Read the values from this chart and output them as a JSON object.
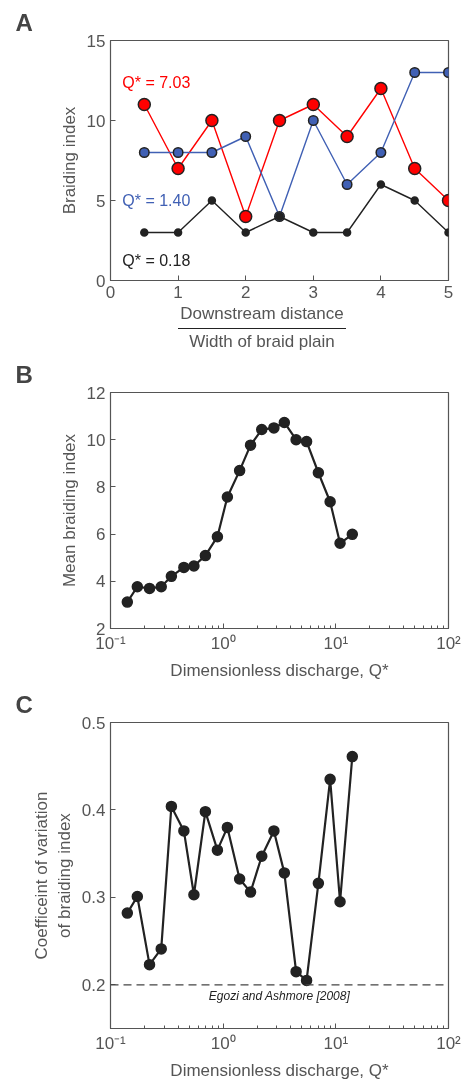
{
  "chart_data": [
    {
      "type": "line",
      "title": "A",
      "ylabel": "Braiding index",
      "xlabel": "Downstream distance\nWidth of braid plain",
      "x": [
        0.5,
        1,
        1.5,
        2,
        2.5,
        3,
        3.5,
        4,
        4.5,
        5
      ],
      "series": [
        {
          "name": "Q* = 7.03",
          "color": "#ff0000",
          "values": [
            11,
            7,
            10,
            4,
            10,
            11,
            9,
            12,
            7,
            5
          ]
        },
        {
          "name": "Q* = 1.40",
          "color": "#4060b4",
          "values": [
            8,
            8,
            8,
            9,
            4,
            10,
            6,
            8,
            13,
            13
          ]
        },
        {
          "name": "Q* = 0.18",
          "color": "#222222",
          "values": [
            3,
            3,
            5,
            3,
            4,
            3,
            3,
            6,
            5,
            3
          ]
        }
      ],
      "xlim": [
        0,
        5
      ],
      "xticks": [
        0,
        1,
        2,
        3,
        4,
        5
      ],
      "ylim": [
        0,
        15
      ],
      "yticks": [
        0,
        5,
        10,
        15
      ],
      "grid": false,
      "legend": false,
      "marker": "circle",
      "line_style": "solid"
    },
    {
      "type": "line",
      "title": "B",
      "ylabel": "Mean braiding index",
      "xlabel": "Dimensionless discharge, Q*",
      "x": [
        0.141,
        0.173,
        0.222,
        0.282,
        0.347,
        0.448,
        0.55,
        0.695,
        0.889,
        1.09,
        1.4,
        1.75,
        2.2,
        2.82,
        3.49,
        4.44,
        5.5,
        7.0,
        8.9,
        10.9,
        14.0
      ],
      "series": [
        {
          "color": "#222222",
          "values": [
            3.12,
            3.77,
            3.7,
            3.77,
            4.21,
            4.59,
            4.65,
            5.09,
            5.89,
            7.57,
            8.69,
            9.77,
            10.43,
            10.5,
            10.73,
            10.0,
            9.92,
            8.6,
            7.37,
            5.61,
            5.99
          ]
        }
      ],
      "xlim": [
        0.1,
        100
      ],
      "xticks": [
        {
          "value": 0.1,
          "label": "10⁻¹"
        },
        {
          "value": 1,
          "label": "10⁰"
        },
        {
          "value": 10,
          "label": "10¹"
        },
        {
          "value": 100,
          "label": "10²"
        }
      ],
      "ylim": [
        2,
        12
      ],
      "yticks": [
        2,
        4,
        6,
        8,
        10,
        12
      ],
      "log": "x",
      "grid": false,
      "legend": false,
      "marker": "circle",
      "line_style": "solid"
    },
    {
      "type": "line",
      "title": "C",
      "ylabel": "Coefficeint of variation\nof braiding index",
      "xlabel": "Dimensionless discharge, Q*",
      "x": [
        0.141,
        0.173,
        0.222,
        0.282,
        0.347,
        0.448,
        0.55,
        0.695,
        0.889,
        1.09,
        1.4,
        1.75,
        2.2,
        2.82,
        3.49,
        4.44,
        5.5,
        7.0,
        8.9,
        10.9,
        14.0
      ],
      "series": [
        {
          "color": "#222222",
          "values": [
            0.282,
            0.301,
            0.223,
            0.241,
            0.404,
            0.376,
            0.303,
            0.398,
            0.354,
            0.38,
            0.321,
            0.306,
            0.347,
            0.376,
            0.328,
            0.215,
            0.205,
            0.316,
            0.435,
            0.295,
            0.461
          ]
        }
      ],
      "xlim": [
        0.1,
        100
      ],
      "xticks": [
        {
          "value": 0.1,
          "label": "10⁻¹"
        },
        {
          "value": 1,
          "label": "10⁰"
        },
        {
          "value": 10,
          "label": "10¹"
        },
        {
          "value": 100,
          "label": "10²"
        }
      ],
      "ylim": [
        0.15,
        0.5
      ],
      "yticks": [
        0.2,
        0.3,
        0.4,
        0.5
      ],
      "log": "x",
      "ref_lines": [
        {
          "axis": "y",
          "value": 0.2,
          "label": "Egozi and Ashmore [2008]",
          "color": "#444444",
          "line_style": "dashed"
        }
      ],
      "grid": false,
      "legend": false,
      "marker": "circle",
      "line_style": "solid"
    }
  ]
}
